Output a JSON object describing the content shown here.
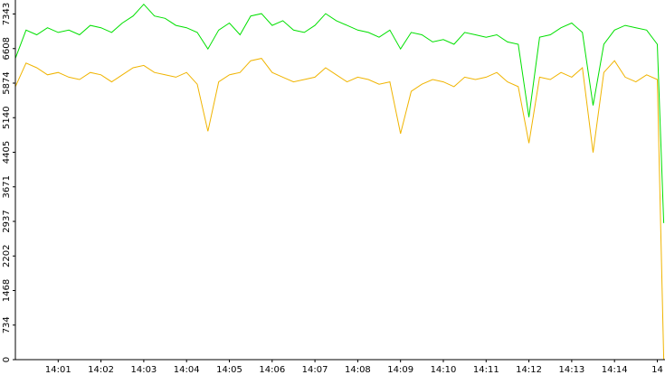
{
  "chart_data": {
    "type": "line",
    "x": [
      0,
      0.25,
      0.5,
      0.75,
      1,
      1.25,
      1.5,
      1.75,
      2,
      2.25,
      2.5,
      2.75,
      3,
      3.25,
      3.5,
      3.75,
      4,
      4.25,
      4.5,
      4.75,
      5,
      5.25,
      5.5,
      5.75,
      6,
      6.25,
      6.5,
      6.75,
      7,
      7.25,
      7.5,
      7.75,
      8,
      8.25,
      8.5,
      8.75,
      9,
      9.25,
      9.5,
      9.75,
      10,
      10.25,
      10.5,
      10.75,
      11,
      11.25,
      11.5,
      11.75,
      12,
      12.25,
      12.5,
      12.75,
      13,
      13.25,
      13.5,
      13.75,
      14,
      14.25,
      14.5,
      14.75,
      15,
      15.15
    ],
    "series": [
      {
        "color": "#f0b400",
        "values": [
          5800,
          6300,
          6200,
          6050,
          6100,
          6000,
          5950,
          6100,
          6050,
          5900,
          6050,
          6200,
          6250,
          6100,
          6050,
          6000,
          6100,
          5850,
          4850,
          5900,
          6050,
          6100,
          6350,
          6400,
          6100,
          6000,
          5900,
          5950,
          6000,
          6200,
          6050,
          5900,
          6000,
          5950,
          5850,
          5900,
          4800,
          5700,
          5850,
          5950,
          5900,
          5800,
          6000,
          5950,
          6000,
          6100,
          5900,
          5800,
          4600,
          6000,
          5950,
          6100,
          6000,
          6200,
          4400,
          6100,
          6350,
          6000,
          5900,
          6050,
          5950,
          0
        ]
      },
      {
        "color": "#00e000",
        "values": [
          6400,
          7000,
          6900,
          7050,
          6950,
          7000,
          6900,
          7100,
          7050,
          6950,
          7150,
          7300,
          7550,
          7300,
          7250,
          7100,
          7050,
          6950,
          6600,
          7000,
          7150,
          6900,
          7300,
          7350,
          7100,
          7200,
          7000,
          6950,
          7100,
          7350,
          7200,
          7100,
          7000,
          6950,
          6850,
          7000,
          6600,
          6950,
          6900,
          6750,
          6800,
          6700,
          6950,
          6900,
          6850,
          6900,
          6750,
          6700,
          5150,
          6850,
          6900,
          7050,
          7150,
          6950,
          5400,
          6700,
          7000,
          7100,
          7050,
          7000,
          6700,
          2900
        ]
      }
    ],
    "xlim": [
      0,
      15.18
    ],
    "xticks": [
      {
        "value": 1,
        "label": "14:01"
      },
      {
        "value": 2,
        "label": "14:02"
      },
      {
        "value": 3,
        "label": "14:03"
      },
      {
        "value": 4,
        "label": "14:04"
      },
      {
        "value": 5,
        "label": "14:05"
      },
      {
        "value": 6,
        "label": "14:06"
      },
      {
        "value": 7,
        "label": "14:07"
      },
      {
        "value": 8,
        "label": "14:08"
      },
      {
        "value": 9,
        "label": "14:09"
      },
      {
        "value": 10,
        "label": "14:10"
      },
      {
        "value": 11,
        "label": "14:11"
      },
      {
        "value": 12,
        "label": "14:12"
      },
      {
        "value": 13,
        "label": "14:13"
      },
      {
        "value": 14,
        "label": "14:14"
      },
      {
        "value": 15,
        "label": "14"
      }
    ],
    "ylim": [
      0,
      7640
    ],
    "yticks": [
      0,
      734,
      1468,
      2202,
      2937,
      3671,
      4405,
      5140,
      5874,
      6608,
      7343
    ]
  }
}
